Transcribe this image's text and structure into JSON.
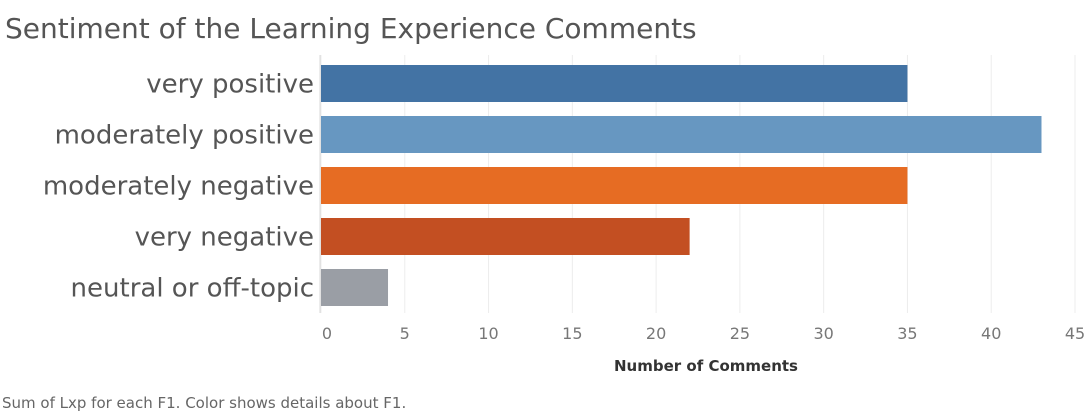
{
  "chart_data": {
    "type": "bar",
    "orientation": "horizontal",
    "title": "Sentiment of the Learning Experience Comments",
    "categories": [
      "very positive",
      "moderately positive",
      "moderately negative",
      "very negative",
      "neutral or off-topic"
    ],
    "values": [
      35,
      43,
      35,
      22,
      4
    ],
    "colors": [
      "#4373A4",
      "#6797C1",
      "#E66C23",
      "#C34F22",
      "#9A9EA5"
    ],
    "xlabel": "Number of Comments",
    "ylabel": "",
    "xlim": [
      0,
      45
    ],
    "xticks": [
      0,
      5,
      10,
      15,
      20,
      25,
      30,
      35,
      40,
      45
    ],
    "grid": "vertical",
    "footnote": "Sum of Lxp for each F1.  Color shows details about F1."
  }
}
